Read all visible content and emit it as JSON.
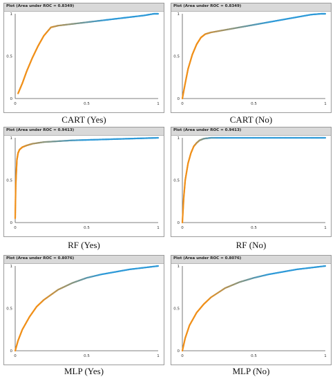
{
  "panels": [
    {
      "title": "Plot (Area under ROC = 0.8349)",
      "caption": "CART (Yes)"
    },
    {
      "title": "Plot (Area under ROC = 0.8349)",
      "caption": "CART (No)"
    },
    {
      "title": "Plot (Area under ROC = 0.9413)",
      "caption": "RF (Yes)"
    },
    {
      "title": "Plot (Area under ROC = 0.9413)",
      "caption": "RF (No)"
    },
    {
      "title": "Plot (Area under ROC = 0.8076)",
      "caption": "MLP (Yes)"
    },
    {
      "title": "Plot (Area under ROC = 0.8076)",
      "caption": "MLP (No)"
    }
  ],
  "chart_data": [
    {
      "type": "line",
      "title": "Plot (Area under ROC = 0.8349)",
      "xlim": [
        0,
        1
      ],
      "ylim": [
        0,
        1
      ],
      "x_ticks": [
        "0",
        "0.5",
        "1"
      ],
      "y_ticks": [
        "0",
        "0.5",
        "1"
      ],
      "x": [
        0.02,
        0.05,
        0.08,
        0.12,
        0.16,
        0.2,
        0.25,
        0.3,
        0.4,
        0.5,
        0.6,
        0.7,
        0.8,
        0.9,
        0.97,
        1.0
      ],
      "y": [
        0.06,
        0.18,
        0.32,
        0.48,
        0.62,
        0.74,
        0.84,
        0.86,
        0.88,
        0.9,
        0.92,
        0.94,
        0.96,
        0.98,
        1.0,
        1.0
      ],
      "colors": {
        "low": "#f0901a",
        "high": "#2f9ad8"
      }
    },
    {
      "type": "line",
      "title": "Plot (Area under ROC = 0.8349)",
      "xlim": [
        0,
        1
      ],
      "ylim": [
        0,
        1
      ],
      "x_ticks": [
        "0",
        "0.5",
        "1"
      ],
      "y_ticks": [
        "0",
        "0.5",
        "1"
      ],
      "x": [
        0.0,
        0.02,
        0.04,
        0.07,
        0.1,
        0.13,
        0.16,
        0.2,
        0.3,
        0.4,
        0.5,
        0.6,
        0.7,
        0.8,
        0.9,
        0.97,
        1.0
      ],
      "y": [
        0.0,
        0.18,
        0.35,
        0.52,
        0.64,
        0.72,
        0.76,
        0.78,
        0.81,
        0.84,
        0.87,
        0.9,
        0.93,
        0.96,
        0.99,
        1.0,
        1.0
      ],
      "colors": {
        "low": "#f0901a",
        "high": "#2f9ad8"
      }
    },
    {
      "type": "line",
      "title": "Plot (Area under ROC = 0.9413)",
      "xlim": [
        0,
        1
      ],
      "ylim": [
        0,
        1
      ],
      "x_ticks": [
        "0",
        "0.5",
        "1"
      ],
      "y_ticks": [
        "0",
        "0.5",
        "1"
      ],
      "x": [
        0.0,
        0.004,
        0.008,
        0.012,
        0.02,
        0.03,
        0.05,
        0.08,
        0.12,
        0.2,
        0.3,
        0.4,
        0.5,
        0.6,
        0.7,
        0.8,
        0.9,
        1.0
      ],
      "y": [
        0.05,
        0.45,
        0.6,
        0.74,
        0.82,
        0.86,
        0.89,
        0.91,
        0.93,
        0.95,
        0.96,
        0.97,
        0.975,
        0.98,
        0.985,
        0.99,
        0.995,
        1.0
      ],
      "colors": {
        "low": "#f0901a",
        "high": "#2f9ad8"
      }
    },
    {
      "type": "line",
      "title": "Plot (Area under ROC = 0.9413)",
      "xlim": [
        0,
        1
      ],
      "ylim": [
        0,
        1
      ],
      "x_ticks": [
        "0",
        "0.5",
        "1"
      ],
      "y_ticks": [
        "0",
        "0.5",
        "1"
      ],
      "x": [
        0.0,
        0.01,
        0.02,
        0.04,
        0.06,
        0.08,
        0.1,
        0.12,
        0.15,
        0.2,
        0.3,
        0.5,
        0.7,
        0.9,
        1.0
      ],
      "y": [
        0.0,
        0.3,
        0.5,
        0.7,
        0.82,
        0.9,
        0.94,
        0.97,
        0.99,
        1.0,
        1.0,
        1.0,
        1.0,
        1.0,
        1.0
      ],
      "colors": {
        "low": "#f0901a",
        "high": "#2f9ad8"
      }
    },
    {
      "type": "line",
      "title": "Plot (Area under ROC = 0.8076)",
      "xlim": [
        0,
        1
      ],
      "ylim": [
        0,
        1
      ],
      "x_ticks": [
        "0",
        "0.5",
        "1"
      ],
      "y_ticks": [
        "0",
        "0.5",
        "1"
      ],
      "x": [
        0.0,
        0.02,
        0.05,
        0.1,
        0.15,
        0.2,
        0.3,
        0.4,
        0.5,
        0.6,
        0.7,
        0.8,
        0.9,
        1.0
      ],
      "y": [
        0.0,
        0.12,
        0.25,
        0.4,
        0.52,
        0.6,
        0.72,
        0.8,
        0.86,
        0.9,
        0.93,
        0.96,
        0.98,
        1.0
      ],
      "colors": {
        "low": "#f0901a",
        "high": "#2f9ad8"
      }
    },
    {
      "type": "line",
      "title": "Plot (Area under ROC = 0.8076)",
      "xlim": [
        0,
        1
      ],
      "ylim": [
        0,
        1
      ],
      "x_ticks": [
        "0",
        "0.5",
        "1"
      ],
      "y_ticks": [
        "0",
        "0.5",
        "1"
      ],
      "x": [
        0.0,
        0.02,
        0.05,
        0.1,
        0.15,
        0.2,
        0.3,
        0.4,
        0.5,
        0.6,
        0.7,
        0.8,
        0.9,
        1.0
      ],
      "y": [
        0.0,
        0.15,
        0.3,
        0.45,
        0.55,
        0.63,
        0.74,
        0.81,
        0.86,
        0.9,
        0.93,
        0.96,
        0.98,
        1.0
      ],
      "colors": {
        "low": "#f0901a",
        "high": "#2f9ad8"
      }
    }
  ]
}
